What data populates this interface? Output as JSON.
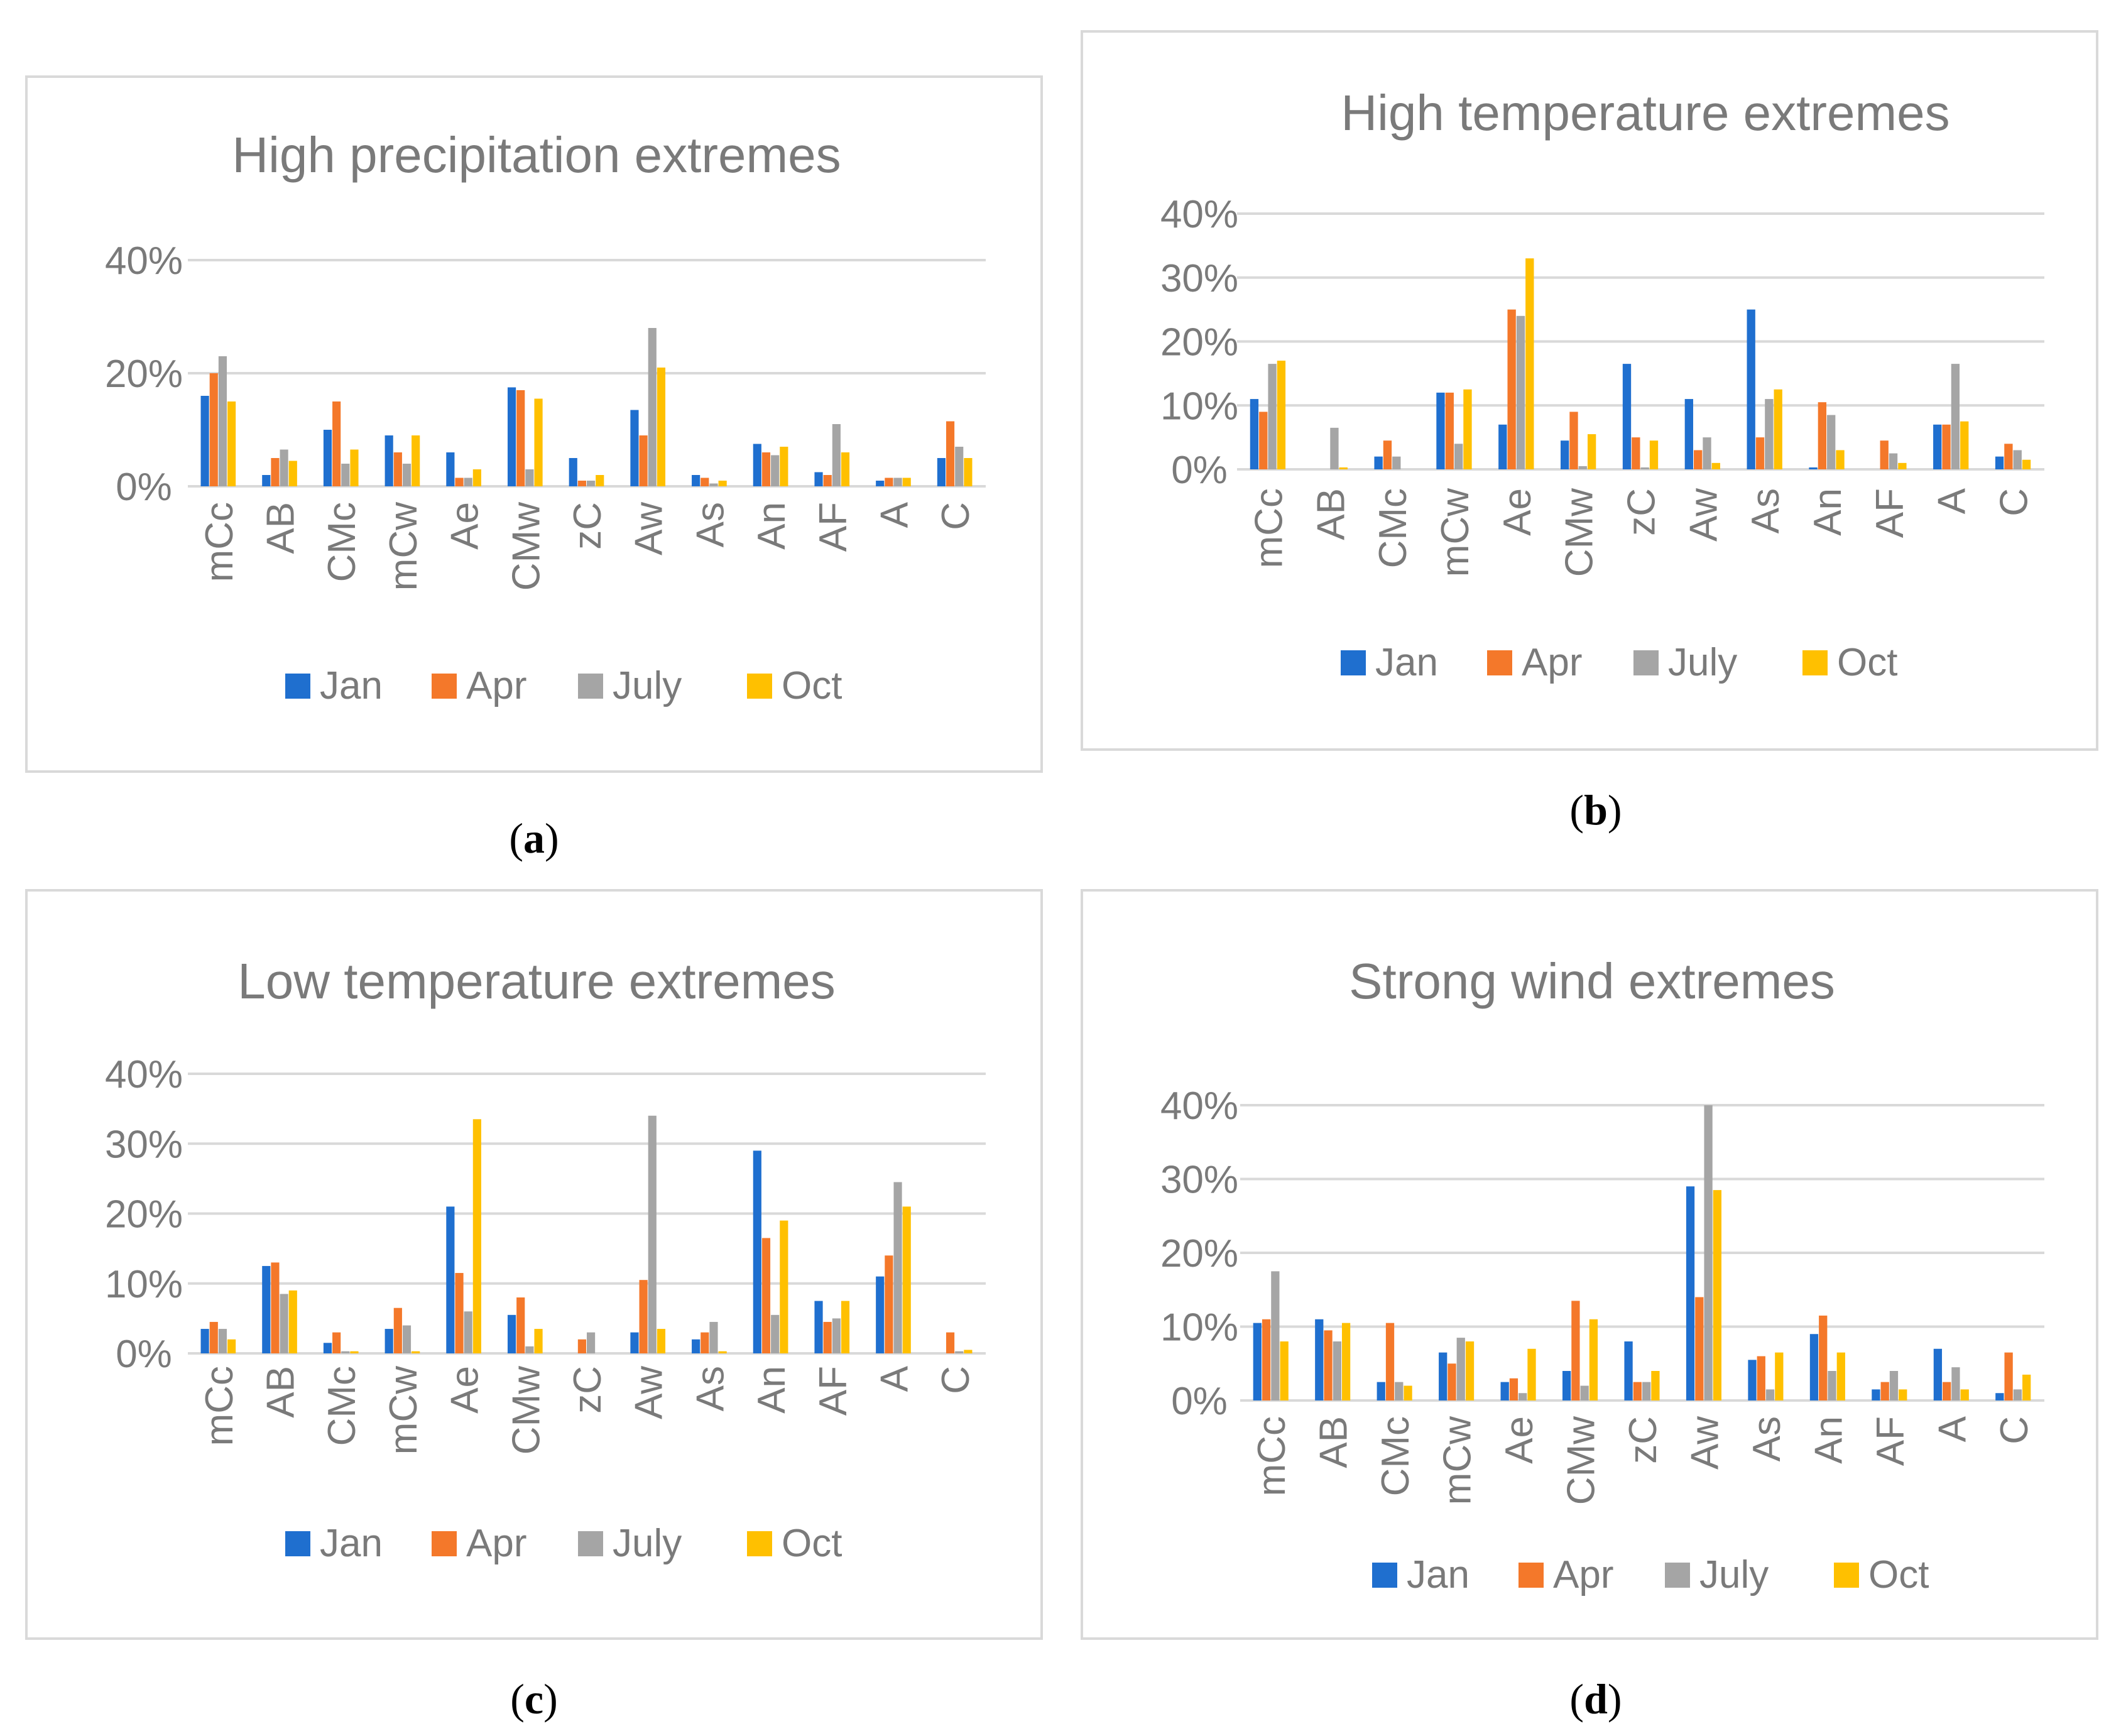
{
  "colors": {
    "jan": "#1f6fcf",
    "apr": "#f4782a",
    "july": "#a5a5a5",
    "oct": "#ffc000",
    "grid": "#d9d9d9",
    "text": "#7a7a7a"
  },
  "charts": [
    {
      "id": "a",
      "caption": "a",
      "chart_data": {
        "type": "bar",
        "title": "High precipitation extremes",
        "categories": [
          "mCc",
          "AB",
          "CMc",
          "mCw",
          "Ae",
          "CMw",
          "zC",
          "Aw",
          "As",
          "An",
          "AF",
          "A",
          "C"
        ],
        "ylim": [
          0,
          40
        ],
        "yticks": [
          0,
          20,
          40
        ],
        "ytick_labels": [
          "0%",
          "20%",
          "40%"
        ],
        "series": [
          {
            "name": "Jan",
            "values": [
              16,
              2,
              10,
              9,
              6,
              17.5,
              5,
              13.5,
              2,
              7.5,
              2.5,
              1,
              5
            ]
          },
          {
            "name": "Apr",
            "values": [
              20,
              5,
              15,
              6,
              1.5,
              17,
              1,
              9,
              1.5,
              6,
              2,
              1.5,
              11.5
            ]
          },
          {
            "name": "July",
            "values": [
              23,
              6.5,
              4,
              4,
              1.5,
              3,
              1,
              28,
              0.5,
              5.5,
              11,
              1.5,
              7
            ]
          },
          {
            "name": "Oct",
            "values": [
              15,
              4.5,
              6.5,
              9,
              3,
              15.5,
              2,
              21,
              1,
              7,
              6,
              1.5,
              5
            ]
          }
        ]
      }
    },
    {
      "id": "b",
      "caption": "b",
      "chart_data": {
        "type": "bar",
        "title": "High temperature extremes",
        "categories": [
          "mCc",
          "AB",
          "CMc",
          "mCw",
          "Ae",
          "CMw",
          "zC",
          "Aw",
          "As",
          "An",
          "AF",
          "A",
          "C"
        ],
        "ylim": [
          0,
          40
        ],
        "yticks": [
          0,
          10,
          20,
          30,
          40
        ],
        "ytick_labels": [
          "0%",
          "10%",
          "20%",
          "30%",
          "40%"
        ],
        "series": [
          {
            "name": "Jan",
            "values": [
              11,
              0,
              2,
              12,
              7,
              4.5,
              16.5,
              11,
              25,
              0.3,
              0,
              7,
              2
            ]
          },
          {
            "name": "Apr",
            "values": [
              9,
              0,
              4.5,
              12,
              25,
              9,
              5,
              3,
              5,
              10.5,
              4.5,
              7,
              4
            ]
          },
          {
            "name": "July",
            "values": [
              16.5,
              6.5,
              2,
              4,
              24,
              0.5,
              0.3,
              5,
              11,
              8.5,
              2.5,
              16.5,
              3
            ]
          },
          {
            "name": "Oct",
            "values": [
              17,
              0.3,
              0,
              12.5,
              33,
              5.5,
              4.5,
              1,
              12.5,
              3,
              1,
              7.5,
              1.5
            ]
          }
        ]
      }
    },
    {
      "id": "c",
      "caption": "c",
      "chart_data": {
        "type": "bar",
        "title": "Low temperature extremes",
        "categories": [
          "mCc",
          "AB",
          "CMc",
          "mCw",
          "Ae",
          "CMw",
          "zC",
          "Aw",
          "As",
          "An",
          "AF",
          "A",
          "C"
        ],
        "ylim": [
          0,
          40
        ],
        "yticks": [
          0,
          10,
          20,
          30,
          40
        ],
        "ytick_labels": [
          "0%",
          "10%",
          "20%",
          "30%",
          "40%"
        ],
        "series": [
          {
            "name": "Jan",
            "values": [
              3.5,
              12.5,
              1.5,
              3.5,
              21,
              5.5,
              0,
              3,
              2,
              29,
              7.5,
              11,
              0
            ]
          },
          {
            "name": "Apr",
            "values": [
              4.5,
              13,
              3,
              6.5,
              11.5,
              8,
              2,
              10.5,
              3,
              16.5,
              4.5,
              14,
              3
            ]
          },
          {
            "name": "July",
            "values": [
              3.5,
              8.5,
              0.3,
              4,
              6,
              1,
              3,
              34,
              4.5,
              5.5,
              5,
              24.5,
              0.3
            ]
          },
          {
            "name": "Oct",
            "values": [
              2,
              9,
              0.3,
              0.3,
              33.5,
              3.5,
              0,
              3.5,
              0.3,
              19,
              7.5,
              21,
              0.5
            ]
          }
        ]
      }
    },
    {
      "id": "d",
      "caption": "d",
      "chart_data": {
        "type": "bar",
        "title": "Strong wind extremes",
        "categories": [
          "mCc",
          "AB",
          "CMc",
          "mCw",
          "Ae",
          "CMw",
          "zC",
          "Aw",
          "As",
          "An",
          "AF",
          "A",
          "C"
        ],
        "ylim": [
          0,
          40
        ],
        "yticks": [
          0,
          10,
          20,
          30,
          40
        ],
        "ytick_labels": [
          "0%",
          "10%",
          "20%",
          "30%",
          "40%"
        ],
        "series": [
          {
            "name": "Jan",
            "values": [
              10.5,
              11,
              2.5,
              6.5,
              2.5,
              4,
              8,
              29,
              5.5,
              9,
              1.5,
              7,
              1
            ]
          },
          {
            "name": "Apr",
            "values": [
              11,
              9.5,
              10.5,
              5,
              3,
              13.5,
              2.5,
              14,
              6,
              11.5,
              2.5,
              2.5,
              6.5
            ]
          },
          {
            "name": "July",
            "values": [
              17.5,
              8,
              2.5,
              8.5,
              1,
              2,
              2.5,
              40,
              1.5,
              4,
              4,
              4.5,
              1.5
            ]
          },
          {
            "name": "Oct",
            "values": [
              8,
              10.5,
              2,
              8,
              7,
              11,
              4,
              28.5,
              6.5,
              6.5,
              1.5,
              1.5,
              3.5
            ]
          }
        ]
      }
    }
  ]
}
